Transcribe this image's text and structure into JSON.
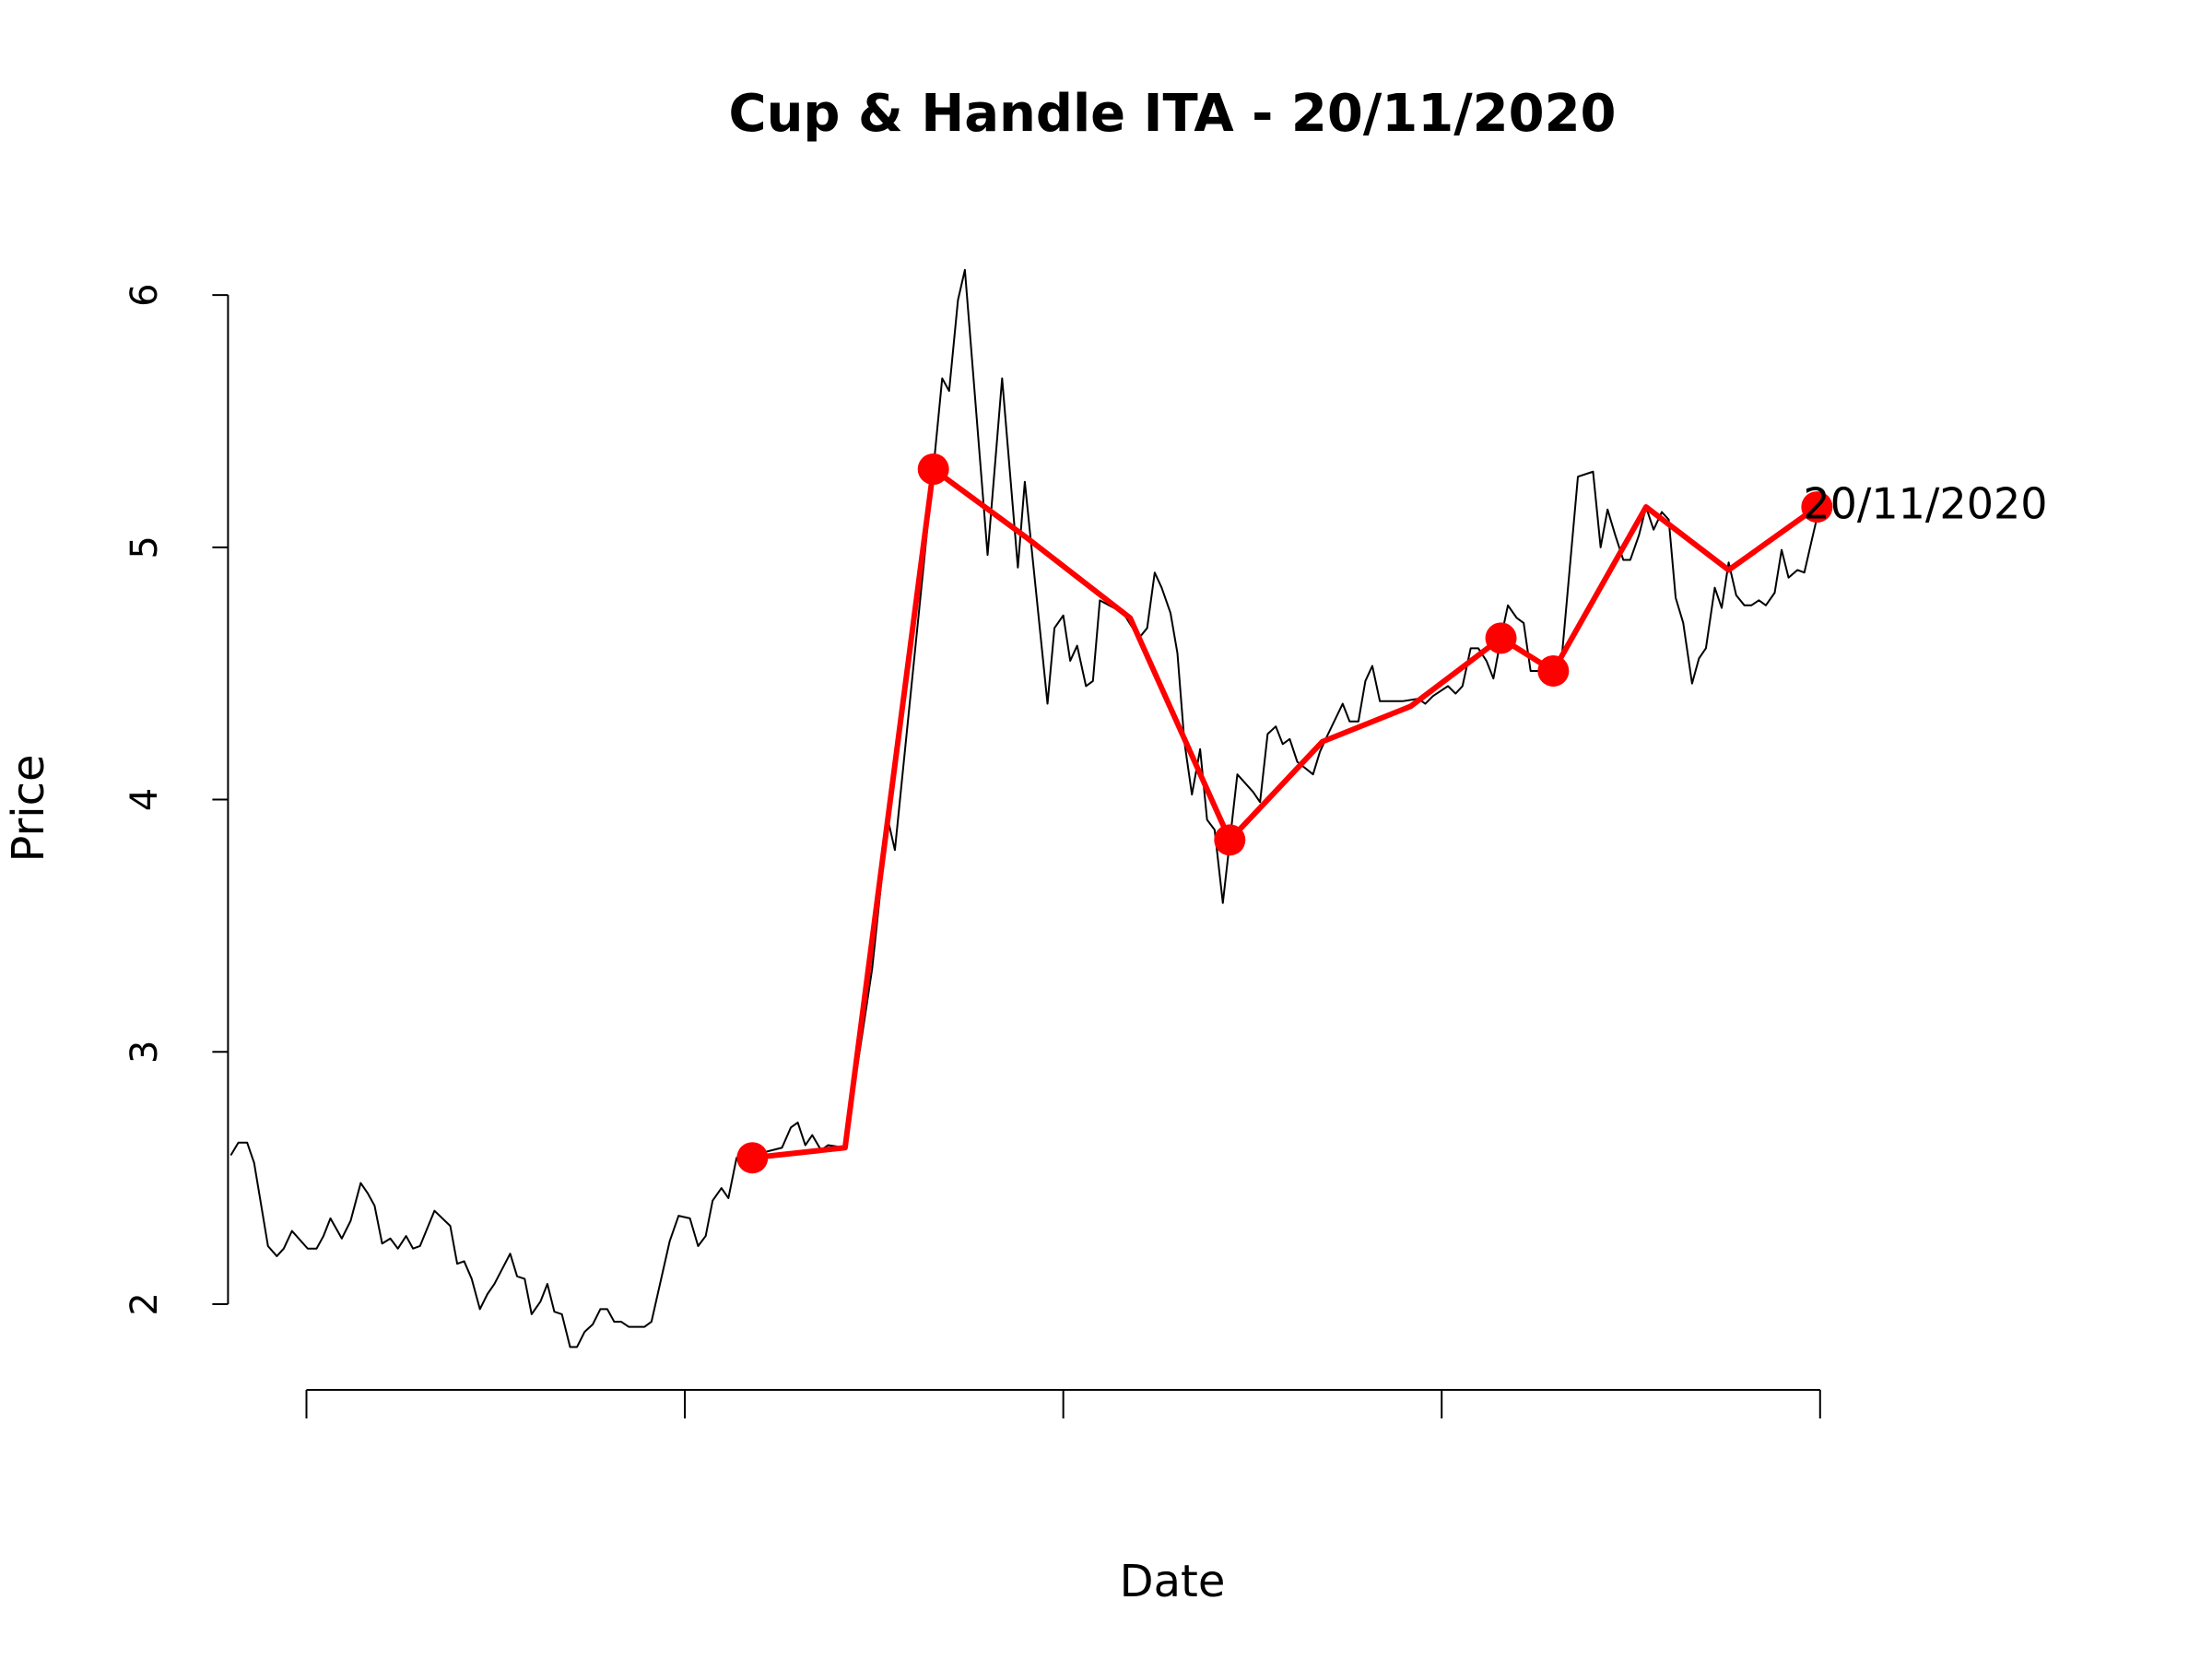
{
  "chart_data": {
    "type": "line",
    "title": "Cup & Handle ITA - 20/11/2020",
    "xlabel": "Date",
    "ylabel": "Price",
    "xlim": [
      48,
      340
    ],
    "ylim": [
      1.66,
      6.26
    ],
    "xticks": [
      60,
      120,
      180,
      240,
      300
    ],
    "yticks": [
      2,
      3,
      4,
      5,
      6
    ],
    "series": [
      {
        "color": "#000000",
        "mode": "line",
        "width": 2,
        "x": [
          48,
          49.2,
          50.6,
          51.7,
          53.9,
          55.3,
          56.4,
          57.7,
          60.2,
          61.6,
          62.7,
          63.8,
          65.6,
          67,
          68.6,
          69.7,
          70.8,
          72,
          73.3,
          74.5,
          75.8,
          76.9,
          78,
          80.3,
          82.8,
          83.9,
          85,
          86.2,
          87.5,
          88.7,
          89.8,
          92.3,
          93.4,
          94.6,
          95.7,
          97.1,
          98.2,
          99.3,
          100.5,
          101.8,
          102.9,
          104.1,
          105.4,
          106.6,
          107.7,
          108.8,
          109.9,
          111.1,
          113.6,
          114.7,
          117.6,
          119,
          120.8,
          122.1,
          123.3,
          124.4,
          125.8,
          126.9,
          128.2,
          130.7,
          135.4,
          136.8,
          137.9,
          139.1,
          140.2,
          141.6,
          142.7,
          145.4,
          149.7,
          152.2,
          153.3,
          159.4,
          160.8,
          161.9,
          163.3,
          164.4,
          168,
          170.3,
          172.8,
          173.9,
          177.5,
          178.6,
          180,
          181.1,
          182.2,
          183.6,
          184.7,
          185.8,
          189.5,
          192,
          193.3,
          194.5,
          195.6,
          197,
          198.1,
          199.2,
          200.4,
          201.7,
          202.8,
          204,
          205.3,
          207.6,
          210.1,
          211.2,
          212.4,
          213.7,
          214.8,
          215.9,
          217.1,
          219.6,
          220.7,
          221.8,
          224.3,
          225.4,
          226.8,
          227.9,
          229,
          230.2,
          233.8,
          236.3,
          237.4,
          238.6,
          241,
          242.2,
          243.3,
          244.6,
          245.8,
          247.1,
          248.2,
          249.4,
          250.5,
          251.9,
          253,
          254.1,
          257.7,
          259.1,
          261.6,
          264,
          265.2,
          266.3,
          267.5,
          268.8,
          269.9,
          271.3,
          272.4,
          273.6,
          274.9,
          276,
          277.1,
          278.3,
          279.7,
          280.8,
          281.9,
          283.3,
          284.4,
          285.5,
          286.7,
          288,
          289.1,
          290.3,
          291.4,
          292.8,
          293.9,
          295,
          296.4,
          297.5,
          298.6,
          300
        ],
        "values": [
          2.59,
          2.64,
          2.64,
          2.56,
          2.23,
          2.19,
          2.22,
          2.29,
          2.22,
          2.22,
          2.27,
          2.34,
          2.26,
          2.33,
          2.48,
          2.44,
          2.39,
          2.24,
          2.26,
          2.22,
          2.27,
          2.22,
          2.23,
          2.37,
          2.31,
          2.16,
          2.17,
          2.1,
          1.98,
          2.04,
          2.08,
          2.2,
          2.11,
          2.1,
          1.96,
          2.01,
          2.08,
          1.97,
          1.96,
          1.83,
          1.83,
          1.89,
          1.92,
          1.98,
          1.98,
          1.93,
          1.93,
          1.91,
          1.91,
          1.93,
          2.25,
          2.35,
          2.34,
          2.23,
          2.27,
          2.41,
          2.46,
          2.42,
          2.58,
          2.59,
          2.62,
          2.7,
          2.72,
          2.63,
          2.67,
          2.61,
          2.63,
          2.62,
          3.33,
          3.92,
          3.8,
          5.31,
          5.67,
          5.62,
          5.98,
          6.1,
          4.97,
          5.67,
          4.92,
          5.26,
          4.38,
          4.68,
          4.73,
          4.55,
          4.61,
          4.45,
          4.47,
          4.79,
          4.74,
          4.64,
          4.68,
          4.9,
          4.84,
          4.74,
          4.58,
          4.23,
          4.02,
          4.2,
          3.92,
          3.88,
          3.59,
          4.1,
          4.03,
          3.99,
          4.26,
          4.29,
          4.22,
          4.24,
          4.15,
          4.1,
          4.19,
          4.25,
          4.38,
          4.31,
          4.31,
          4.47,
          4.53,
          4.39,
          4.39,
          4.4,
          4.38,
          4.41,
          4.45,
          4.42,
          4.45,
          4.6,
          4.6,
          4.55,
          4.48,
          4.64,
          4.77,
          4.72,
          4.7,
          4.51,
          4.51,
          4.58,
          5.28,
          5.3,
          5,
          5.15,
          5.05,
          4.95,
          4.95,
          5.05,
          5.16,
          5.07,
          5.14,
          5.11,
          4.8,
          4.7,
          4.46,
          4.56,
          4.6,
          4.84,
          4.76,
          4.94,
          4.81,
          4.77,
          4.77,
          4.79,
          4.77,
          4.82,
          4.99,
          4.88,
          4.91,
          4.9,
          5.02,
          5.17
        ]
      },
      {
        "color": "#ff0000",
        "mode": "line",
        "width": 6,
        "x": [
          130.7,
          145.4,
          159.4,
          174.1,
          190.6,
          206.4,
          221.1,
          235.1,
          249.4,
          257.7,
          272.4,
          285.5,
          299.5
        ],
        "values": [
          2.58,
          2.62,
          5.31,
          5.04,
          4.72,
          3.84,
          4.23,
          4.37,
          4.64,
          4.51,
          5.16,
          4.91,
          5.16
        ]
      },
      {
        "color": "#ff0000",
        "mode": "markers",
        "x": [
          130.7,
          159.4,
          206.4,
          249.4,
          257.7,
          299.5
        ],
        "values": [
          2.58,
          5.31,
          3.84,
          4.64,
          4.51,
          5.16
        ]
      }
    ],
    "annotation": {
      "text": "20/11/2020",
      "x": 299.5,
      "y": 5.16
    }
  }
}
